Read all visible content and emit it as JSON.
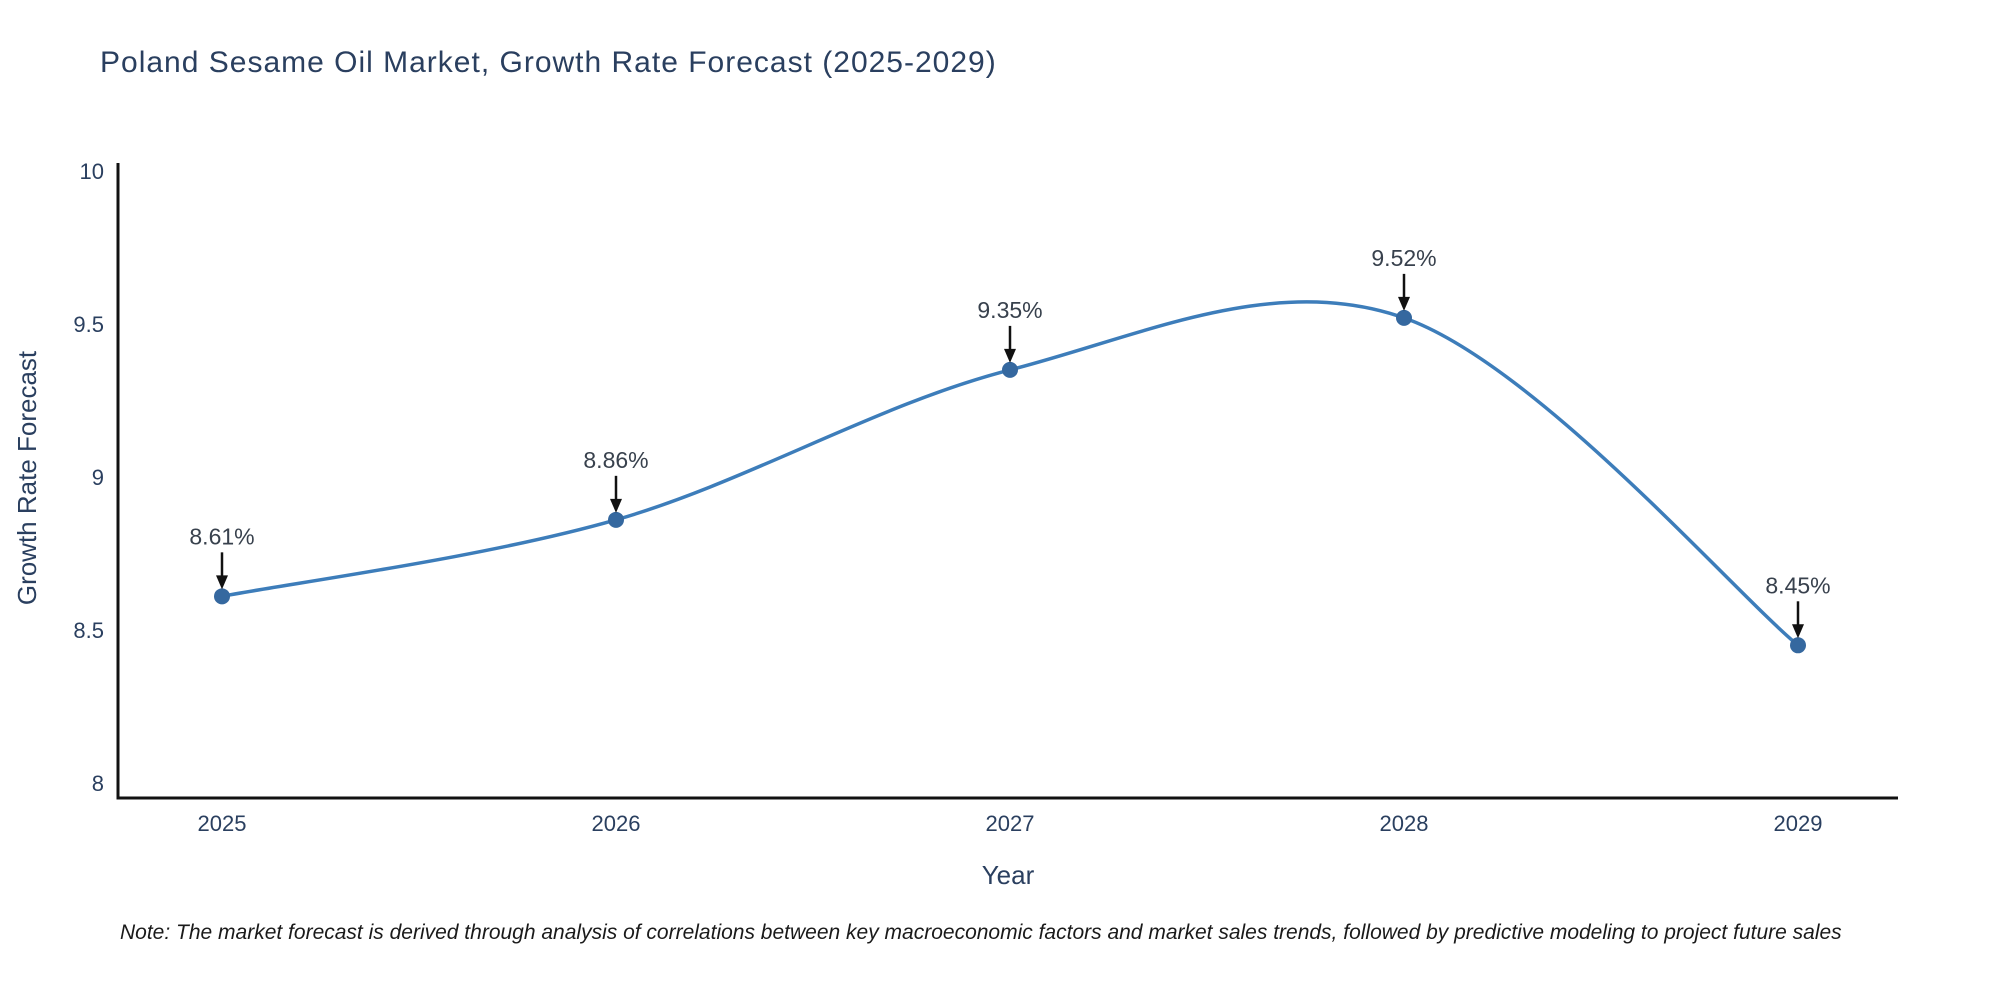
{
  "title": "Poland Sesame Oil Market, Growth Rate Forecast (2025-2029)",
  "note": "Note: The market forecast is derived through analysis of correlations between key macroeconomic factors and market sales trends, followed by predictive modeling to project future sales",
  "chart_data": {
    "type": "line",
    "title": "Poland Sesame Oil Market, Growth Rate Forecast (2025-2029)",
    "xlabel": "Year",
    "ylabel": "Growth Rate Forecast",
    "line_shape": "spline",
    "grid": false,
    "legend": false,
    "x": [
      2025,
      2026,
      2027,
      2028,
      2029
    ],
    "values": [
      8.61,
      8.86,
      9.35,
      9.52,
      8.45
    ],
    "point_labels": [
      "8.61%",
      "8.86%",
      "9.35%",
      "9.52%",
      "8.45%"
    ],
    "xtick_labels": [
      "2025",
      "2026",
      "2027",
      "2028",
      "2029"
    ],
    "yticks": [
      8,
      8.5,
      9,
      9.5,
      10
    ],
    "ytick_labels": [
      "8",
      "8.5",
      "9",
      "9.5",
      "10"
    ],
    "ylim": [
      7.95,
      10.03
    ],
    "colors": {
      "line": "#3d7dba",
      "marker": "#35689f",
      "axis": "#111111",
      "arrow": "#111111",
      "text": "#2a3f5f"
    }
  }
}
